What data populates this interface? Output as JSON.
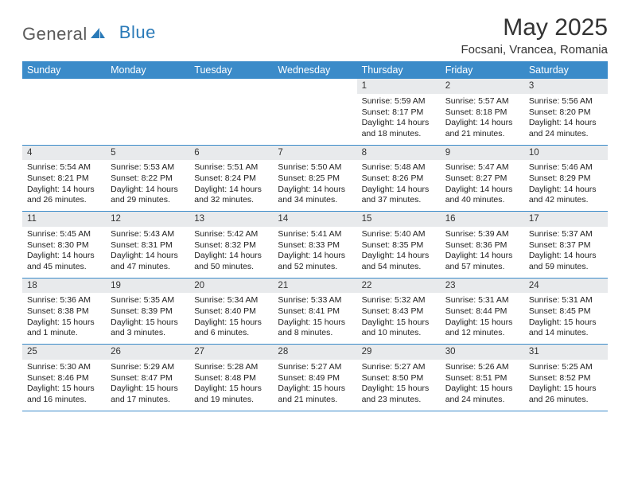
{
  "logo": {
    "part1": "General",
    "part2": "Blue"
  },
  "title": "May 2025",
  "location": "Focsani, Vrancea, Romania",
  "colors": {
    "header_bg": "#3b8bc9",
    "header_text": "#ffffff",
    "daynum_bg": "#e8eaec",
    "row_border": "#3b8bc9",
    "body_text": "#222222",
    "title_text": "#333333",
    "logo_gray": "#5a5a5a",
    "logo_blue": "#2a7ab8"
  },
  "fonts": {
    "title_size_pt": 22,
    "location_size_pt": 11,
    "header_size_pt": 9,
    "body_size_pt": 8
  },
  "day_headers": [
    "Sunday",
    "Monday",
    "Tuesday",
    "Wednesday",
    "Thursday",
    "Friday",
    "Saturday"
  ],
  "weeks": [
    [
      {
        "n": "",
        "lines": [
          "",
          "",
          "",
          ""
        ]
      },
      {
        "n": "",
        "lines": [
          "",
          "",
          "",
          ""
        ]
      },
      {
        "n": "",
        "lines": [
          "",
          "",
          "",
          ""
        ]
      },
      {
        "n": "",
        "lines": [
          "",
          "",
          "",
          ""
        ]
      },
      {
        "n": "1",
        "lines": [
          "Sunrise: 5:59 AM",
          "Sunset: 8:17 PM",
          "Daylight: 14 hours",
          "and 18 minutes."
        ]
      },
      {
        "n": "2",
        "lines": [
          "Sunrise: 5:57 AM",
          "Sunset: 8:18 PM",
          "Daylight: 14 hours",
          "and 21 minutes."
        ]
      },
      {
        "n": "3",
        "lines": [
          "Sunrise: 5:56 AM",
          "Sunset: 8:20 PM",
          "Daylight: 14 hours",
          "and 24 minutes."
        ]
      }
    ],
    [
      {
        "n": "4",
        "lines": [
          "Sunrise: 5:54 AM",
          "Sunset: 8:21 PM",
          "Daylight: 14 hours",
          "and 26 minutes."
        ]
      },
      {
        "n": "5",
        "lines": [
          "Sunrise: 5:53 AM",
          "Sunset: 8:22 PM",
          "Daylight: 14 hours",
          "and 29 minutes."
        ]
      },
      {
        "n": "6",
        "lines": [
          "Sunrise: 5:51 AM",
          "Sunset: 8:24 PM",
          "Daylight: 14 hours",
          "and 32 minutes."
        ]
      },
      {
        "n": "7",
        "lines": [
          "Sunrise: 5:50 AM",
          "Sunset: 8:25 PM",
          "Daylight: 14 hours",
          "and 34 minutes."
        ]
      },
      {
        "n": "8",
        "lines": [
          "Sunrise: 5:48 AM",
          "Sunset: 8:26 PM",
          "Daylight: 14 hours",
          "and 37 minutes."
        ]
      },
      {
        "n": "9",
        "lines": [
          "Sunrise: 5:47 AM",
          "Sunset: 8:27 PM",
          "Daylight: 14 hours",
          "and 40 minutes."
        ]
      },
      {
        "n": "10",
        "lines": [
          "Sunrise: 5:46 AM",
          "Sunset: 8:29 PM",
          "Daylight: 14 hours",
          "and 42 minutes."
        ]
      }
    ],
    [
      {
        "n": "11",
        "lines": [
          "Sunrise: 5:45 AM",
          "Sunset: 8:30 PM",
          "Daylight: 14 hours",
          "and 45 minutes."
        ]
      },
      {
        "n": "12",
        "lines": [
          "Sunrise: 5:43 AM",
          "Sunset: 8:31 PM",
          "Daylight: 14 hours",
          "and 47 minutes."
        ]
      },
      {
        "n": "13",
        "lines": [
          "Sunrise: 5:42 AM",
          "Sunset: 8:32 PM",
          "Daylight: 14 hours",
          "and 50 minutes."
        ]
      },
      {
        "n": "14",
        "lines": [
          "Sunrise: 5:41 AM",
          "Sunset: 8:33 PM",
          "Daylight: 14 hours",
          "and 52 minutes."
        ]
      },
      {
        "n": "15",
        "lines": [
          "Sunrise: 5:40 AM",
          "Sunset: 8:35 PM",
          "Daylight: 14 hours",
          "and 54 minutes."
        ]
      },
      {
        "n": "16",
        "lines": [
          "Sunrise: 5:39 AM",
          "Sunset: 8:36 PM",
          "Daylight: 14 hours",
          "and 57 minutes."
        ]
      },
      {
        "n": "17",
        "lines": [
          "Sunrise: 5:37 AM",
          "Sunset: 8:37 PM",
          "Daylight: 14 hours",
          "and 59 minutes."
        ]
      }
    ],
    [
      {
        "n": "18",
        "lines": [
          "Sunrise: 5:36 AM",
          "Sunset: 8:38 PM",
          "Daylight: 15 hours",
          "and 1 minute."
        ]
      },
      {
        "n": "19",
        "lines": [
          "Sunrise: 5:35 AM",
          "Sunset: 8:39 PM",
          "Daylight: 15 hours",
          "and 3 minutes."
        ]
      },
      {
        "n": "20",
        "lines": [
          "Sunrise: 5:34 AM",
          "Sunset: 8:40 PM",
          "Daylight: 15 hours",
          "and 6 minutes."
        ]
      },
      {
        "n": "21",
        "lines": [
          "Sunrise: 5:33 AM",
          "Sunset: 8:41 PM",
          "Daylight: 15 hours",
          "and 8 minutes."
        ]
      },
      {
        "n": "22",
        "lines": [
          "Sunrise: 5:32 AM",
          "Sunset: 8:43 PM",
          "Daylight: 15 hours",
          "and 10 minutes."
        ]
      },
      {
        "n": "23",
        "lines": [
          "Sunrise: 5:31 AM",
          "Sunset: 8:44 PM",
          "Daylight: 15 hours",
          "and 12 minutes."
        ]
      },
      {
        "n": "24",
        "lines": [
          "Sunrise: 5:31 AM",
          "Sunset: 8:45 PM",
          "Daylight: 15 hours",
          "and 14 minutes."
        ]
      }
    ],
    [
      {
        "n": "25",
        "lines": [
          "Sunrise: 5:30 AM",
          "Sunset: 8:46 PM",
          "Daylight: 15 hours",
          "and 16 minutes."
        ]
      },
      {
        "n": "26",
        "lines": [
          "Sunrise: 5:29 AM",
          "Sunset: 8:47 PM",
          "Daylight: 15 hours",
          "and 17 minutes."
        ]
      },
      {
        "n": "27",
        "lines": [
          "Sunrise: 5:28 AM",
          "Sunset: 8:48 PM",
          "Daylight: 15 hours",
          "and 19 minutes."
        ]
      },
      {
        "n": "28",
        "lines": [
          "Sunrise: 5:27 AM",
          "Sunset: 8:49 PM",
          "Daylight: 15 hours",
          "and 21 minutes."
        ]
      },
      {
        "n": "29",
        "lines": [
          "Sunrise: 5:27 AM",
          "Sunset: 8:50 PM",
          "Daylight: 15 hours",
          "and 23 minutes."
        ]
      },
      {
        "n": "30",
        "lines": [
          "Sunrise: 5:26 AM",
          "Sunset: 8:51 PM",
          "Daylight: 15 hours",
          "and 24 minutes."
        ]
      },
      {
        "n": "31",
        "lines": [
          "Sunrise: 5:25 AM",
          "Sunset: 8:52 PM",
          "Daylight: 15 hours",
          "and 26 minutes."
        ]
      }
    ]
  ]
}
